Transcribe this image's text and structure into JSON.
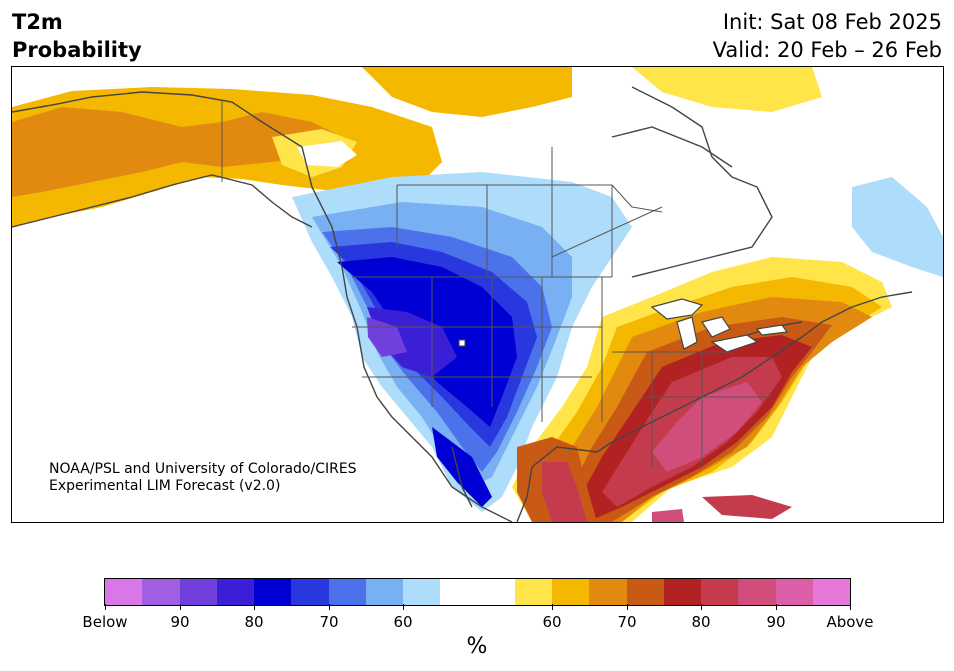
{
  "header": {
    "variable": "T2m",
    "metric": "Probability",
    "init": "Init: Sat 08 Feb 2025",
    "valid": "Valid: 20 Feb – 26 Feb"
  },
  "map": {
    "credit_line1": "NOAA/PSL and University of Colorado/CIRES",
    "credit_line2": "Experimental LIM Forecast (v2.0)"
  },
  "colorbar": {
    "unit": "%",
    "colors": [
      "#d977e8",
      "#a25ee3",
      "#7040dd",
      "#3b1fd6",
      "#0000d4",
      "#2838de",
      "#4b72ea",
      "#78b0f3",
      "#aedcfb",
      "#ffffff",
      "#ffffff",
      "#ffe44a",
      "#f5b800",
      "#e28a10",
      "#c95a16",
      "#b22222",
      "#c33b4c",
      "#d14e7c",
      "#dc5ea8",
      "#e578d8"
    ],
    "tick_labels": [
      "Below",
      "90",
      "80",
      "70",
      "60",
      "60",
      "70",
      "80",
      "90",
      "Above"
    ]
  }
}
